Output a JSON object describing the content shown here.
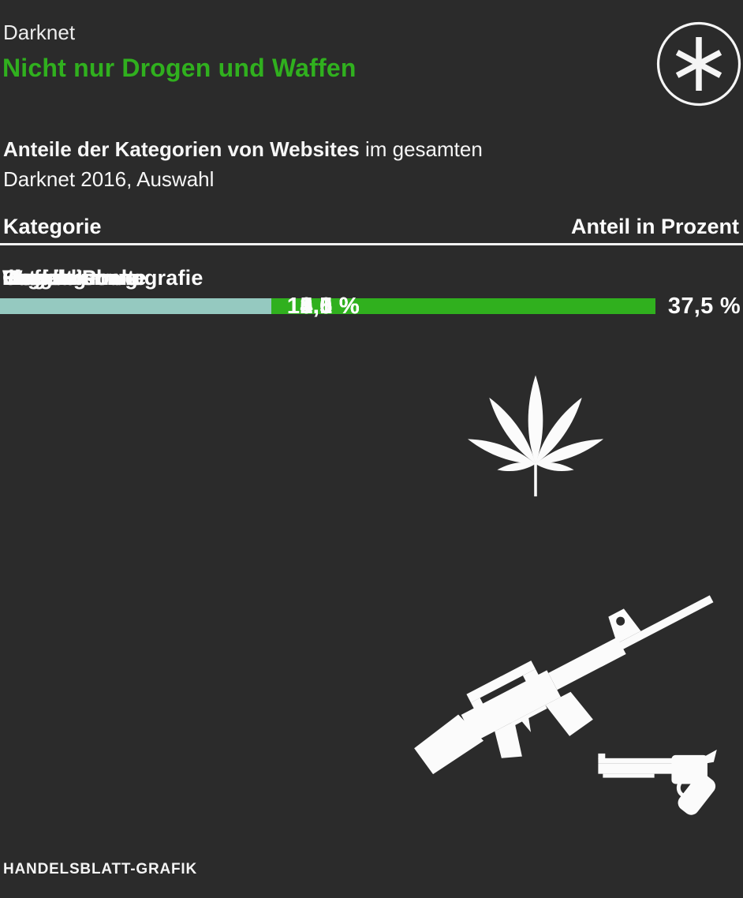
{
  "header": {
    "kicker": "Darknet",
    "title": "Nicht nur Drogen und Waffen",
    "logo_icon": "asterisk-icon"
  },
  "subtitle": {
    "bold": "Anteile der Kategorien von Websites",
    "regular_suffix": " im gesamten",
    "line2": "Darknet 2016, Auswahl"
  },
  "table_header": {
    "left": "Kategorie",
    "right": "Anteil in Prozent"
  },
  "chart_data": {
    "type": "bar",
    "orientation": "horizontal",
    "unit": "percent",
    "max_value": 37.5,
    "value_axis_label": "Anteil in Prozent",
    "category_axis_label": "Kategorie",
    "categories": [
      "Legale Inhalte",
      "Drogen",
      "Finanzbetrug",
      "Extremismus",
      "Illegale Pornografie",
      "Hacking",
      "Waffen",
      "Gewalt"
    ],
    "values": [
      37.5,
      15.5,
      12.0,
      5.1,
      4.5,
      3.5,
      1.5,
      0.6
    ],
    "rows": [
      {
        "label": "Legale Inhalte",
        "value": 37.5,
        "value_label": "37,5 %",
        "highlight": true
      },
      {
        "label": "Drogen",
        "value": 15.5,
        "value_label": "15,5 %",
        "highlight": false
      },
      {
        "label": "Finanzbetrug",
        "value": 12.0,
        "value_label": "12,0 %",
        "highlight": false
      },
      {
        "label": "Extremismus",
        "value": 5.1,
        "value_label": "5,1 %",
        "highlight": false
      },
      {
        "label": "Illegale Pornografie",
        "value": 4.5,
        "value_label": "4,5 %",
        "highlight": false
      },
      {
        "label": "Hacking",
        "value": 3.5,
        "value_label": "3,5 %",
        "highlight": false
      },
      {
        "label": "Waffen",
        "value": 1.5,
        "value_label": "1,5 %",
        "highlight": false
      },
      {
        "label": "Gewalt",
        "value": 0.6,
        "value_label": "0,6 %",
        "highlight": false
      }
    ],
    "colors": {
      "highlight_bar": "#30b01e",
      "bar": "#95c9c0"
    },
    "legend": "none",
    "grid": "off"
  },
  "icons": {
    "logo": "asterisk-icon",
    "drugs": "cannabis-leaf-icon",
    "rifle": "rifle-icon",
    "revolver": "revolver-icon"
  },
  "footer": {
    "credit": "HANDELSBLATT-GRAFIK"
  },
  "colors": {
    "background": "#2b2b2b",
    "text": "#fcfcfc",
    "accent_green": "#30b01e",
    "bar_teal": "#95c9c0",
    "divider": "#f2f2f2"
  }
}
